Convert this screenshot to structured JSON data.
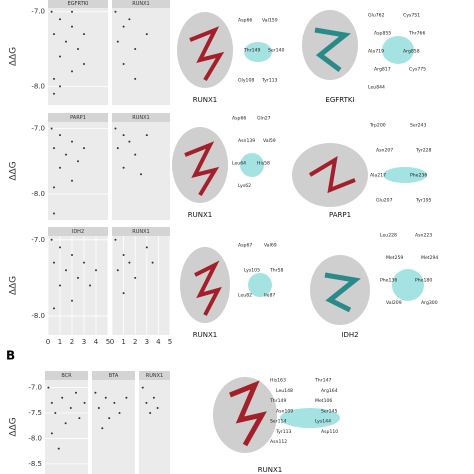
{
  "panel_label": "B",
  "chart_data": [
    {
      "type": "scatter",
      "title": "EGFRTKI",
      "ylabel": "ΔΔG",
      "x": [
        0.3,
        0.5,
        0.5,
        1,
        1,
        1.5,
        2,
        2,
        2.5,
        3,
        3,
        0.5,
        1,
        2
      ],
      "values": [
        -7.0,
        -7.3,
        -7.9,
        -7.1,
        -7.6,
        -7.4,
        -7.2,
        -7.8,
        -7.5,
        -7.3,
        -7.7,
        -8.1,
        -8.0,
        -7.0
      ],
      "xlim": [
        0,
        5
      ],
      "ylim": [
        -6.95,
        -8.25
      ],
      "yticks": [
        {
          "value": -7,
          "label": "-7.0"
        },
        {
          "value": -8,
          "label": "-8.0"
        }
      ],
      "color": "#333"
    },
    {
      "type": "scatter",
      "title": "RUNX1",
      "x": [
        0.3,
        0.5,
        1,
        1,
        1.5,
        2,
        2,
        3
      ],
      "values": [
        -7.0,
        -7.4,
        -7.2,
        -7.7,
        -7.1,
        -7.5,
        -7.9,
        -7.3
      ],
      "xlim": [
        0,
        5
      ],
      "ylim": [
        -6.95,
        -8.25
      ],
      "color": "#333"
    },
    {
      "type": "scatter",
      "title": "PARP1",
      "ylabel": "ΔΔG",
      "x": [
        0.3,
        0.5,
        0.5,
        1,
        1,
        1.5,
        2,
        2,
        2.5,
        3,
        0.5
      ],
      "values": [
        -7.0,
        -7.3,
        -7.9,
        -7.1,
        -7.6,
        -7.4,
        -7.2,
        -7.8,
        -7.5,
        -7.3,
        -8.3
      ],
      "xlim": [
        0,
        5
      ],
      "ylim": [
        -6.9,
        -8.4
      ],
      "yticks": [
        {
          "value": -7,
          "label": "-7.0"
        },
        {
          "value": -8,
          "label": "-8.0"
        }
      ],
      "color": "#333"
    },
    {
      "type": "scatter",
      "title": "RUNX1",
      "x": [
        0.3,
        0.5,
        1,
        1,
        1.5,
        2,
        2.5,
        3
      ],
      "values": [
        -7.0,
        -7.3,
        -7.1,
        -7.6,
        -7.2,
        -7.4,
        -7.7,
        -7.1
      ],
      "xlim": [
        0,
        5
      ],
      "ylim": [
        -6.9,
        -8.4
      ],
      "color": "#333"
    },
    {
      "type": "scatter",
      "title": "IDH2",
      "ylabel": "ΔΔG",
      "x": [
        0.3,
        0.5,
        0.5,
        1,
        1,
        1.5,
        2,
        2,
        2.5,
        3,
        3.5,
        4
      ],
      "values": [
        -7.0,
        -7.3,
        -7.9,
        -7.1,
        -7.6,
        -7.4,
        -7.2,
        -7.8,
        -7.5,
        -7.3,
        -7.6,
        -7.4
      ],
      "xlim": [
        0,
        5
      ],
      "ylim": [
        -6.95,
        -8.25
      ],
      "yticks": [
        {
          "value": -7,
          "label": "-7.0"
        },
        {
          "value": -8,
          "label": "-8.0"
        }
      ],
      "xticks": [
        0,
        1,
        2,
        3,
        4,
        5
      ],
      "color": "#333"
    },
    {
      "type": "scatter",
      "title": "RUNX1",
      "x": [
        0.3,
        0.5,
        1,
        1,
        1.5,
        2,
        3,
        3.5
      ],
      "values": [
        -7.0,
        -7.4,
        -7.2,
        -7.7,
        -7.3,
        -7.5,
        -7.1,
        -7.3
      ],
      "xlim": [
        0,
        5
      ],
      "ylim": [
        -6.95,
        -8.25
      ],
      "xticks": [
        0,
        1,
        2,
        3,
        4,
        5
      ],
      "color": "#333"
    },
    {
      "type": "scatter",
      "title": "BCR",
      "ylabel": "ΔΔG",
      "x": [
        0.2,
        0.4,
        0.4,
        0.6,
        0.8,
        1,
        1.2,
        1.5,
        1.8,
        2,
        2.3
      ],
      "values": [
        -7.0,
        -7.3,
        -7.9,
        -7.5,
        -8.2,
        -7.2,
        -7.7,
        -7.4,
        -7.1,
        -7.6,
        -7.3
      ],
      "xlim": [
        0,
        2.5
      ],
      "ylim": [
        -6.85,
        -8.7
      ],
      "yticks": [
        {
          "value": -7,
          "label": "-7.0"
        },
        {
          "value": -7.5,
          "label": "-7.5"
        },
        {
          "value": -8,
          "label": "-8.0"
        },
        {
          "value": -8.5,
          "label": "-8.5"
        }
      ],
      "color": "#333"
    },
    {
      "type": "scatter",
      "title": "BTA",
      "x": [
        0.2,
        0.4,
        0.6,
        0.8,
        1,
        1.3,
        1.6,
        2
      ],
      "values": [
        -7.1,
        -7.4,
        -7.8,
        -7.2,
        -7.6,
        -7.3,
        -7.5,
        -7.2
      ],
      "xlim": [
        0,
        2.5
      ],
      "ylim": [
        -6.85,
        -8.7
      ],
      "color": "#333"
    },
    {
      "type": "scatter",
      "title": "RUNX1",
      "x": [
        0.3,
        0.6,
        0.9,
        1.2,
        1.5
      ],
      "values": [
        -7.0,
        -7.3,
        -7.5,
        -7.2,
        -7.4
      ],
      "xlim": [
        0,
        2.5
      ],
      "ylim": [
        -6.85,
        -8.7
      ],
      "color": "#333"
    }
  ],
  "structures": [
    {
      "protein": "RUNX1",
      "residues": [
        "Asp66",
        "Val159",
        "Thr149",
        "Ser140",
        "Gly108",
        "Tyr113"
      ]
    },
    {
      "protein": "EGFRTKI",
      "residues": [
        "Glu762",
        "Cys751",
        "Asp855",
        "Thr766",
        "Ala719",
        "Arg858",
        "Arg817",
        "Cys775",
        "Leu844"
      ]
    },
    {
      "protein": "RUNX1",
      "residues": [
        "Asp66",
        "Gln27",
        "Asn139",
        "Val59",
        "Leu64",
        "His58",
        "Lys62"
      ]
    },
    {
      "protein": "PARP1",
      "residues": [
        "Trp200",
        "Ser243",
        "Asn207",
        "Tyr228",
        "Ala217",
        "Phe236",
        "Glu207",
        "Tyr195"
      ]
    },
    {
      "protein": "RUNX1",
      "residues": [
        "Asp67",
        "Val69",
        "Lys105",
        "Thr58",
        "Leu82",
        "Ile87"
      ]
    },
    {
      "protein": "IDH2",
      "residues": [
        "Leu228",
        "Asn223",
        "Met259",
        "Met294",
        "Phe136",
        "Phe180",
        "Val209",
        "Arg300"
      ]
    },
    {
      "protein": "RUNX1",
      "residues": [
        "His163",
        "Thr147",
        "Leu148",
        "Arg164",
        "Thr149",
        "Met106",
        "Asn109",
        "Ser145",
        "Ser114",
        "Lys144",
        "Tyr113",
        "Asp110",
        "Asn112"
      ]
    }
  ]
}
